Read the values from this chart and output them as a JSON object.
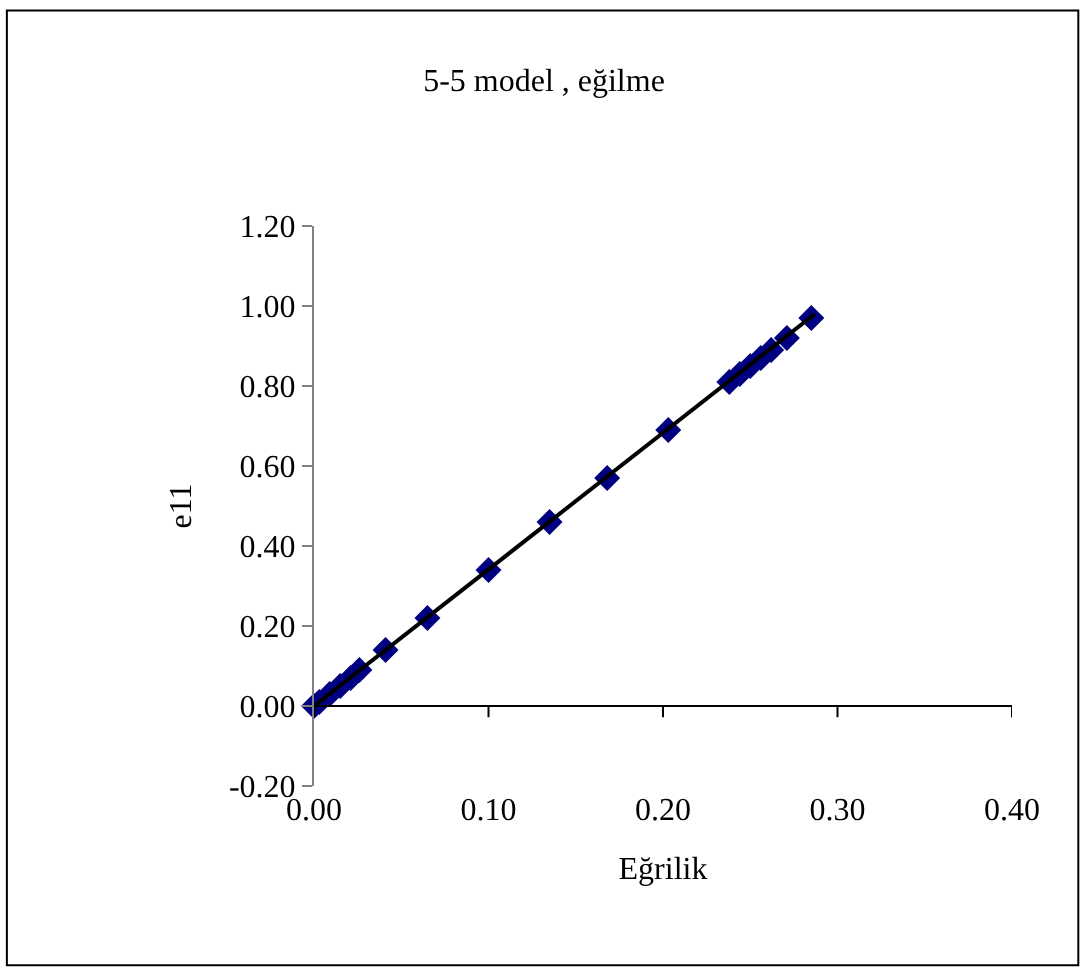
{
  "chart_data": {
    "type": "scatter",
    "title": "5-5 model , eğilme",
    "xlabel": "Eğrilik",
    "ylabel": "e11",
    "series": [
      {
        "color": "#000080",
        "marker": "diamond",
        "x": [
          0,
          0.003,
          0.009,
          0.015,
          0.021,
          0.026,
          0.041,
          0.065,
          0.1,
          0.135,
          0.168,
          0.203,
          0.238,
          0.244,
          0.25,
          0.256,
          0.262,
          0.271,
          0.285
        ],
        "values": [
          0,
          0.01,
          0.03,
          0.05,
          0.07,
          0.09,
          0.14,
          0.22,
          0.34,
          0.46,
          0.57,
          0.69,
          0.81,
          0.83,
          0.85,
          0.87,
          0.89,
          0.92,
          0.97
        ]
      },
      {
        "type": "line",
        "color": "#000000",
        "x": [
          0,
          0.287
        ],
        "values": [
          0,
          0.98
        ]
      }
    ],
    "xlim": [
      0,
      0.4
    ],
    "xticks": [
      {
        "value": 0,
        "label": "0.00"
      },
      {
        "value": 0.1,
        "label": "0.10"
      },
      {
        "value": 0.2,
        "label": "0.20"
      },
      {
        "value": 0.3,
        "label": "0.30"
      },
      {
        "value": 0.4,
        "label": "0.40"
      }
    ],
    "ylim": [
      -0.2,
      1.2
    ],
    "yticks": [
      {
        "value": -0.2,
        "label": "-0.20"
      },
      {
        "value": 0,
        "label": "0.00"
      },
      {
        "value": 0.2,
        "label": "0.20"
      },
      {
        "value": 0.4,
        "label": "0.40"
      },
      {
        "value": 0.6,
        "label": "0.60"
      },
      {
        "value": 0.8,
        "label": "0.80"
      },
      {
        "value": 1.0,
        "label": "1.00"
      },
      {
        "value": 1.2,
        "label": "1.20"
      }
    ],
    "ref_lines": [
      {
        "axis": "y",
        "value": 0,
        "color": "#000000"
      }
    ],
    "grid": false,
    "legend": false
  }
}
